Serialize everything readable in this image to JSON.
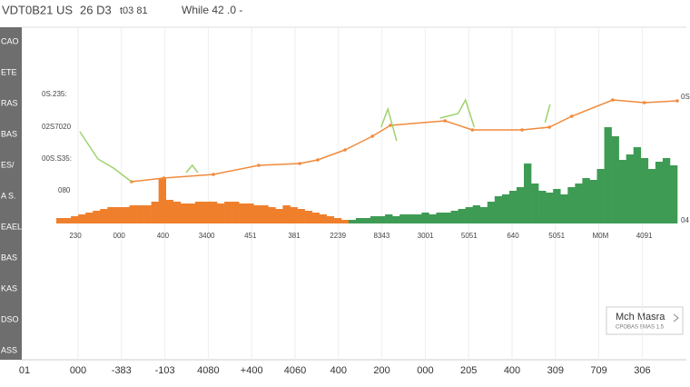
{
  "header": {
    "symbol": "VDT0B21 US",
    "field1": "26 D3",
    "field2": "t03 81",
    "center": "While 42 .0 -"
  },
  "sidebar": [
    "CAO",
    "ETE",
    "RAS",
    "BAS",
    "ES/",
    "A S.",
    "EAEL",
    "BAS",
    "KAS",
    "DSO",
    "ASS"
  ],
  "legend": {
    "title": "Mch Masra",
    "subtitle": "CPOBAS 9MAS 1.5"
  },
  "chart_data": {
    "type": "bar",
    "xlim": [
      0,
      100
    ],
    "ylim": [
      0,
      100
    ],
    "y_labels": [
      "0S.235:",
      "02S7020",
      "00S.S35:",
      "080"
    ],
    "y2_labels": [
      "0S",
      "04"
    ],
    "x_labels": [
      "230",
      "000",
      "400",
      "3400",
      "451",
      "381",
      "2239",
      "8343",
      "3001",
      "5051",
      "640",
      "5051",
      "M0M",
      "4091"
    ],
    "bottom_labels": [
      "01",
      "000",
      "-383",
      "-103",
      "4080",
      "+400",
      "4060",
      "400",
      "200",
      "000",
      "205",
      "400",
      "309",
      "709",
      "306"
    ],
    "series": [
      {
        "color": "#f07f2c",
        "values": [
          3,
          3,
          4,
          5,
          6,
          7,
          8,
          9,
          9,
          9,
          10,
          10,
          10,
          12,
          25,
          13,
          12,
          11,
          11,
          12,
          12,
          12,
          11,
          12,
          12,
          11,
          11,
          10,
          10,
          9,
          8,
          10,
          9,
          8,
          7,
          6,
          5,
          4,
          3,
          2
        ]
      },
      {
        "color": "#3e9b54",
        "values": [
          2,
          3,
          3,
          4,
          4,
          5,
          4,
          5,
          5,
          5,
          6,
          5,
          6,
          6,
          7,
          8,
          9,
          10,
          9,
          12,
          15,
          16,
          18,
          20,
          33,
          22,
          18,
          17,
          19,
          16,
          20,
          22,
          25,
          24,
          30,
          53,
          48,
          35,
          38,
          42,
          36,
          30,
          34,
          36,
          32
        ]
      }
    ],
    "lines": [
      {
        "color": "#f08a3c",
        "x": [
          12.1,
          17.3,
          25.3,
          32.6,
          39.2,
          42.1,
          46.5,
          50.9,
          53.8,
          62.6,
          67,
          75,
          79.4,
          83,
          89.6,
          94.7,
          100
        ],
        "values": [
          23,
          25,
          27,
          32,
          33,
          35,
          40.5,
          48,
          54,
          56.5,
          51.5,
          51.5,
          53,
          59,
          68,
          66.5,
          67.5
        ]
      },
      {
        "color": "#9ed36a",
        "x": [
          3.8,
          6.7,
          9.2,
          12.1,
          null,
          20.9,
          21.9,
          22.8,
          null,
          52.3,
          53.4,
          54.8,
          null,
          61.8,
          64.7,
          65.9,
          67.3,
          null,
          78.7,
          79.5
        ],
        "values": [
          50.5,
          35.5,
          30.5,
          23,
          null,
          28,
          32,
          28,
          null,
          53,
          63,
          45.5,
          null,
          58,
          60.5,
          68,
          53,
          null,
          55.5,
          65.5
        ]
      }
    ]
  }
}
